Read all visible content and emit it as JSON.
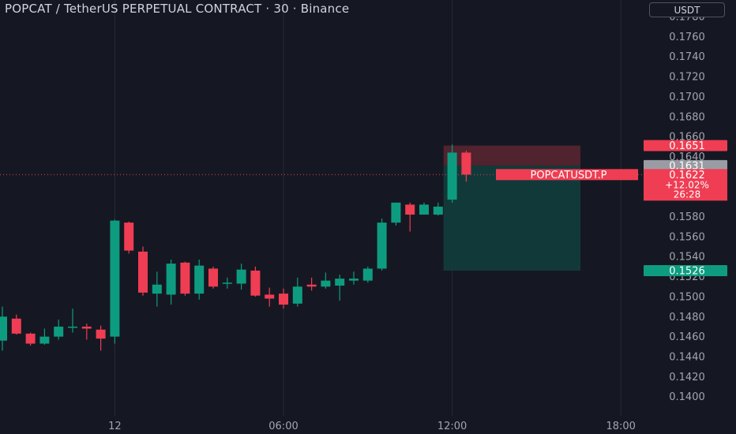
{
  "header": {
    "title": "POPCAT / TetherUS PERPETUAL CONTRACT · 30 · Binance",
    "currency_button": "USDT"
  },
  "colors": {
    "background": "#151822",
    "grid": "#262a36",
    "axis_text": "#a3a6af",
    "up": "#0e9c80",
    "down": "#ef3d53",
    "stop_zone": "#5b2630",
    "target_zone": "#123d3c",
    "last_price": "#ef3d53",
    "neutral_label": "#9a9ca3",
    "target_label": "#0e9c80"
  },
  "price_labels": [
    {
      "value": "0.1651",
      "price": 0.1651,
      "style": "down"
    },
    {
      "value": "0.1631",
      "price": 0.1631,
      "style": "neutral"
    },
    {
      "value": "0.1526",
      "price": 0.1526,
      "style": "up"
    }
  ],
  "last_price": {
    "symbol": "POPCATUSDT.P",
    "price": "0.1622",
    "change": "+12.02%",
    "countdown": "26:28",
    "value": 0.1622
  },
  "chart_data": {
    "type": "candlestick",
    "y_ticks": [
      "0.1780",
      "0.1760",
      "0.1740",
      "0.1720",
      "0.1700",
      "0.1680",
      "0.1660",
      "0.1640",
      "0.1620",
      "0.1600",
      "0.1580",
      "0.1560",
      "0.1540",
      "0.1520",
      "0.1500",
      "0.1480",
      "0.1460",
      "0.1440",
      "0.1420",
      "0.1400"
    ],
    "y_tick_values": [
      0.178,
      0.176,
      0.174,
      0.172,
      0.17,
      0.168,
      0.166,
      0.164,
      0.162,
      0.16,
      0.158,
      0.156,
      0.154,
      0.152,
      0.15,
      0.148,
      0.146,
      0.144,
      0.142,
      0.14
    ],
    "x_labels": [
      "12",
      "06:00",
      "12:00",
      "18:00"
    ],
    "x_label_bar_index": [
      8,
      20,
      32,
      44
    ],
    "candles": [
      {
        "o": 0.1456,
        "h": 0.149,
        "l": 0.1446,
        "c": 0.148
      },
      {
        "o": 0.1478,
        "h": 0.1482,
        "l": 0.1462,
        "c": 0.1463
      },
      {
        "o": 0.1463,
        "h": 0.1464,
        "l": 0.1451,
        "c": 0.1453
      },
      {
        "o": 0.1453,
        "h": 0.1468,
        "l": 0.1452,
        "c": 0.146
      },
      {
        "o": 0.146,
        "h": 0.1477,
        "l": 0.1457,
        "c": 0.147
      },
      {
        "o": 0.1469,
        "h": 0.1488,
        "l": 0.1464,
        "c": 0.147
      },
      {
        "o": 0.147,
        "h": 0.1473,
        "l": 0.1457,
        "c": 0.1468
      },
      {
        "o": 0.1467,
        "h": 0.1471,
        "l": 0.1446,
        "c": 0.1458
      },
      {
        "o": 0.146,
        "h": 0.1577,
        "l": 0.1453,
        "c": 0.1576
      },
      {
        "o": 0.1574,
        "h": 0.1575,
        "l": 0.1543,
        "c": 0.1546
      },
      {
        "o": 0.1545,
        "h": 0.155,
        "l": 0.1501,
        "c": 0.1504
      },
      {
        "o": 0.1503,
        "h": 0.1525,
        "l": 0.149,
        "c": 0.1512
      },
      {
        "o": 0.1502,
        "h": 0.1537,
        "l": 0.1492,
        "c": 0.1533
      },
      {
        "o": 0.1534,
        "h": 0.1535,
        "l": 0.1501,
        "c": 0.1503
      },
      {
        "o": 0.1503,
        "h": 0.1537,
        "l": 0.1497,
        "c": 0.1531
      },
      {
        "o": 0.1528,
        "h": 0.153,
        "l": 0.1508,
        "c": 0.151
      },
      {
        "o": 0.1513,
        "h": 0.1519,
        "l": 0.1508,
        "c": 0.1514
      },
      {
        "o": 0.1513,
        "h": 0.1533,
        "l": 0.1507,
        "c": 0.1527
      },
      {
        "o": 0.1526,
        "h": 0.153,
        "l": 0.15,
        "c": 0.1501
      },
      {
        "o": 0.1502,
        "h": 0.1509,
        "l": 0.149,
        "c": 0.1498
      },
      {
        "o": 0.1503,
        "h": 0.1508,
        "l": 0.1488,
        "c": 0.1492
      },
      {
        "o": 0.1493,
        "h": 0.1519,
        "l": 0.149,
        "c": 0.151
      },
      {
        "o": 0.1512,
        "h": 0.1519,
        "l": 0.1506,
        "c": 0.151
      },
      {
        "o": 0.151,
        "h": 0.1524,
        "l": 0.1508,
        "c": 0.1516
      },
      {
        "o": 0.1511,
        "h": 0.1522,
        "l": 0.1496,
        "c": 0.1518
      },
      {
        "o": 0.1516,
        "h": 0.1525,
        "l": 0.1512,
        "c": 0.1518
      },
      {
        "o": 0.1516,
        "h": 0.153,
        "l": 0.1514,
        "c": 0.1528
      },
      {
        "o": 0.1528,
        "h": 0.1578,
        "l": 0.1526,
        "c": 0.1574
      },
      {
        "o": 0.1574,
        "h": 0.1592,
        "l": 0.1571,
        "c": 0.1594
      },
      {
        "o": 0.1592,
        "h": 0.1594,
        "l": 0.1565,
        "c": 0.1582
      },
      {
        "o": 0.1582,
        "h": 0.1594,
        "l": 0.1582,
        "c": 0.1592
      },
      {
        "o": 0.1582,
        "h": 0.1594,
        "l": 0.1581,
        "c": 0.159
      },
      {
        "o": 0.1597,
        "h": 0.1652,
        "l": 0.1594,
        "c": 0.1644
      },
      {
        "o": 0.1644,
        "h": 0.1646,
        "l": 0.1615,
        "c": 0.1622
      }
    ],
    "stop_zone": {
      "from_bar": 32,
      "to_bar": 40,
      "top": 0.1651,
      "bottom": 0.1631
    },
    "target_zone": {
      "from_bar": 32,
      "to_bar": 40,
      "top": 0.1631,
      "bottom": 0.1526
    },
    "grid": true
  }
}
